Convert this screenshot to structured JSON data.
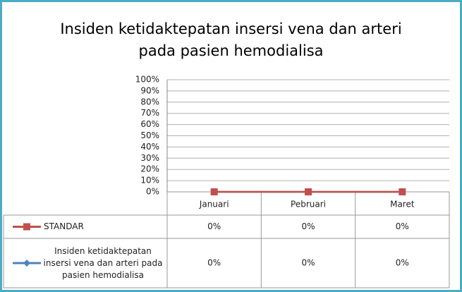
{
  "chart_data": {
    "type": "line",
    "title": "Insiden ketidaktepatan insersi vena dan arteri pada pasien hemodialisa",
    "categories": [
      "Januari",
      "Pebruari",
      "Maret"
    ],
    "series": [
      {
        "name": "STANDAR",
        "color": "#c0504d",
        "marker": "square",
        "values": [
          0,
          0,
          0
        ],
        "value_labels": [
          "0%",
          "0%",
          "0%"
        ]
      },
      {
        "name": "Insiden ketidaktepatan insersi vena dan arteri pada pasien hemodialisa",
        "color": "#4f81bd",
        "marker": "diamond",
        "values": [
          0,
          0,
          0
        ],
        "value_labels": [
          "0%",
          "0%",
          "0%"
        ]
      }
    ],
    "ylim": [
      0,
      100
    ],
    "yticks": [
      {
        "value": 0,
        "label": "0%"
      },
      {
        "value": 10,
        "label": "10%"
      },
      {
        "value": 20,
        "label": "20%"
      },
      {
        "value": 30,
        "label": "30%"
      },
      {
        "value": 40,
        "label": "40%"
      },
      {
        "value": 50,
        "label": "50%"
      },
      {
        "value": 60,
        "label": "60%"
      },
      {
        "value": 70,
        "label": "70%"
      },
      {
        "value": 80,
        "label": "80%"
      },
      {
        "value": 90,
        "label": "90%"
      },
      {
        "value": 100,
        "label": "100%"
      }
    ],
    "grid": true,
    "legend": "table"
  }
}
